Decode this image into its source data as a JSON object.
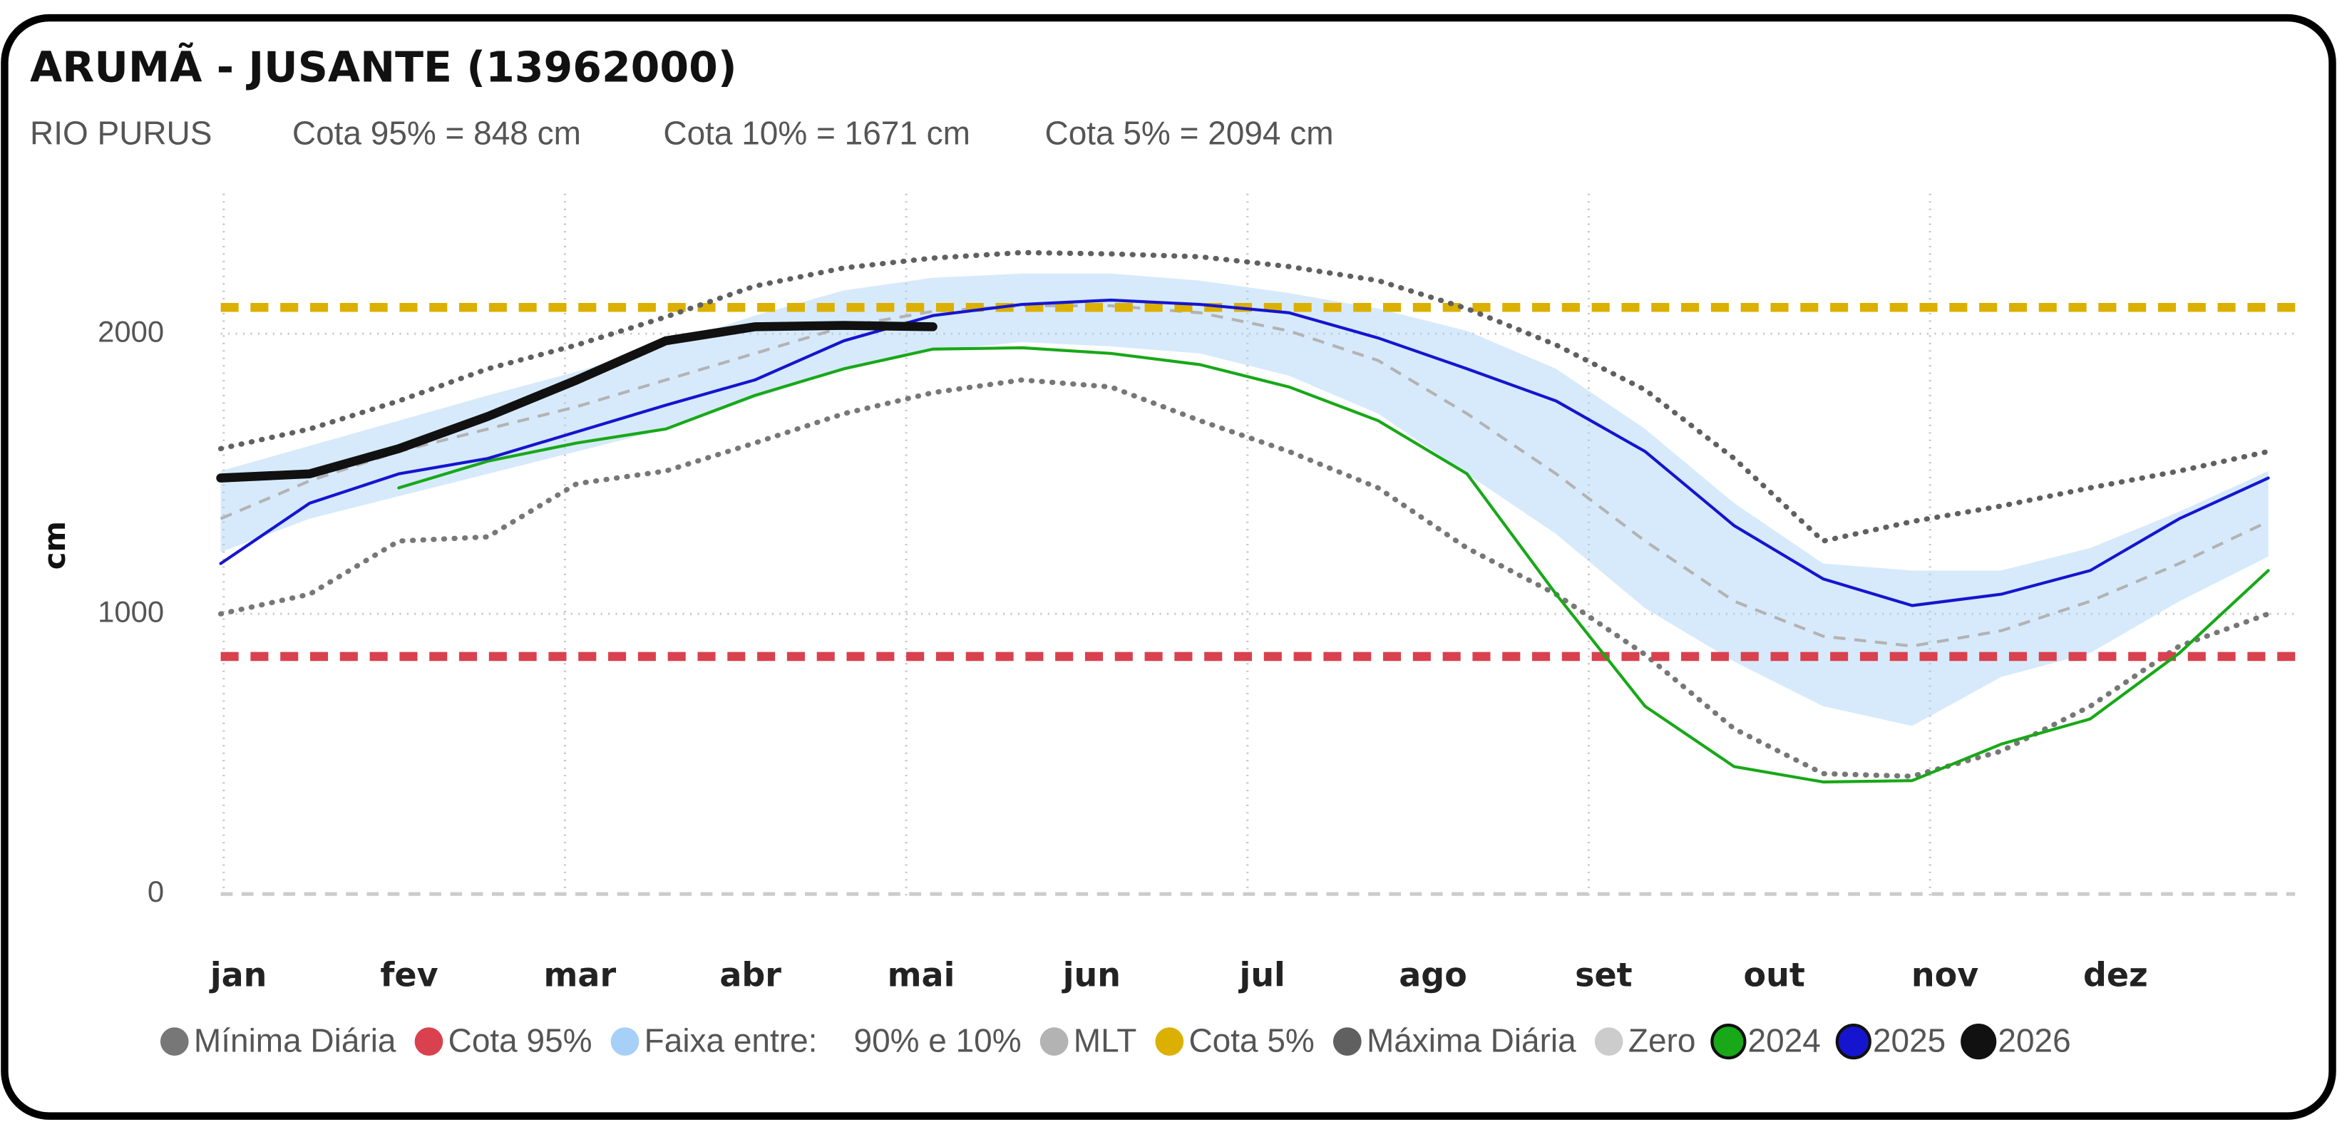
{
  "title": "ARUMÃ - JUSANTE (13962000)",
  "subtitle": {
    "river": "RIO PURUS",
    "items": [
      "Cota 95% = 848 cm",
      "Cota 10% = 1671 cm",
      "Cota 5% = 2094 cm"
    ]
  },
  "chart_data": {
    "type": "line",
    "y_label": "cm",
    "categories": [
      "jan",
      null,
      "fev",
      null,
      "mar",
      null,
      "abr",
      null,
      "mai",
      null,
      "jun",
      null,
      "jul",
      null,
      "ago",
      null,
      "set",
      null,
      "out",
      null,
      "nov",
      null,
      "dez",
      null
    ],
    "ylim": [
      0,
      2500
    ],
    "yticks": [
      0,
      1000,
      2000
    ],
    "grid": true,
    "legend": "bottom",
    "series": [
      {
        "name": "Mínima Diária",
        "color": "#777777",
        "style": "dotted",
        "values": [
          1000,
          1070,
          1260,
          1275,
          1465,
          1510,
          1610,
          1715,
          1790,
          1835,
          1810,
          1690,
          1580,
          1450,
          1235,
          1070,
          855,
          590,
          430,
          420,
          510,
          670,
          885,
          1000
        ]
      },
      {
        "name": "Cota 95%",
        "color": "#d9414f",
        "style": "hline",
        "value": 848
      },
      {
        "name": "Faixa entre:    90% e 10%",
        "color": "#a6d0f7",
        "style": "band",
        "upper": [
          1510,
          1600,
          1690,
          1780,
          1865,
          1960,
          2065,
          2155,
          2200,
          2215,
          2215,
          2190,
          2145,
          2090,
          2010,
          1875,
          1660,
          1395,
          1180,
          1155,
          1155,
          1235,
          1365,
          1510
        ],
        "lower": [
          1220,
          1340,
          1420,
          1500,
          1580,
          1660,
          1770,
          1875,
          1940,
          1970,
          1955,
          1930,
          1850,
          1715,
          1500,
          1285,
          1020,
          830,
          670,
          600,
          775,
          860,
          1045,
          1205
        ]
      },
      {
        "name": "MLT",
        "color": "#b3b3b3",
        "style": "dashed",
        "values": [
          1340,
          1475,
          1580,
          1660,
          1740,
          1835,
          1930,
          2025,
          2080,
          2100,
          2100,
          2075,
          2010,
          1905,
          1715,
          1500,
          1260,
          1045,
          920,
          885,
          940,
          1045,
          1180,
          1330
        ]
      },
      {
        "name": "Cota 5%",
        "color": "#dbb000",
        "style": "hline",
        "value": 2094
      },
      {
        "name": "Máxima Diária",
        "color": "#606060",
        "style": "dotted",
        "values": [
          1590,
          1660,
          1760,
          1875,
          1960,
          2060,
          2170,
          2235,
          2270,
          2290,
          2285,
          2275,
          2240,
          2190,
          2090,
          1960,
          1800,
          1555,
          1260,
          1330,
          1385,
          1450,
          1510,
          1580
        ]
      },
      {
        "name": "Zero",
        "color": "#cccccc",
        "style": "zero",
        "value": 0
      },
      {
        "name": "2024",
        "color": "#18a818",
        "style": "solid",
        "values": [
          null,
          null,
          1450,
          1545,
          1610,
          1660,
          1780,
          1875,
          1945,
          1950,
          1930,
          1890,
          1810,
          1690,
          1500,
          1070,
          670,
          455,
          400,
          405,
          535,
          625,
          860,
          1155
        ]
      },
      {
        "name": "2025",
        "color": "#1515d0",
        "style": "solid",
        "values": [
          1180,
          1395,
          1500,
          1555,
          1650,
          1745,
          1835,
          1975,
          2065,
          2105,
          2120,
          2105,
          2075,
          1985,
          1875,
          1760,
          1580,
          1315,
          1125,
          1030,
          1070,
          1155,
          1340,
          1485
        ]
      },
      {
        "name": "2026",
        "color": "#111111",
        "style": "thick",
        "values": [
          1485,
          1500,
          1590,
          1705,
          1835,
          1975,
          2025,
          2030,
          2025,
          null,
          null,
          null,
          null,
          null,
          null,
          null,
          null,
          null,
          null,
          null,
          null,
          null,
          null,
          null
        ]
      }
    ]
  }
}
